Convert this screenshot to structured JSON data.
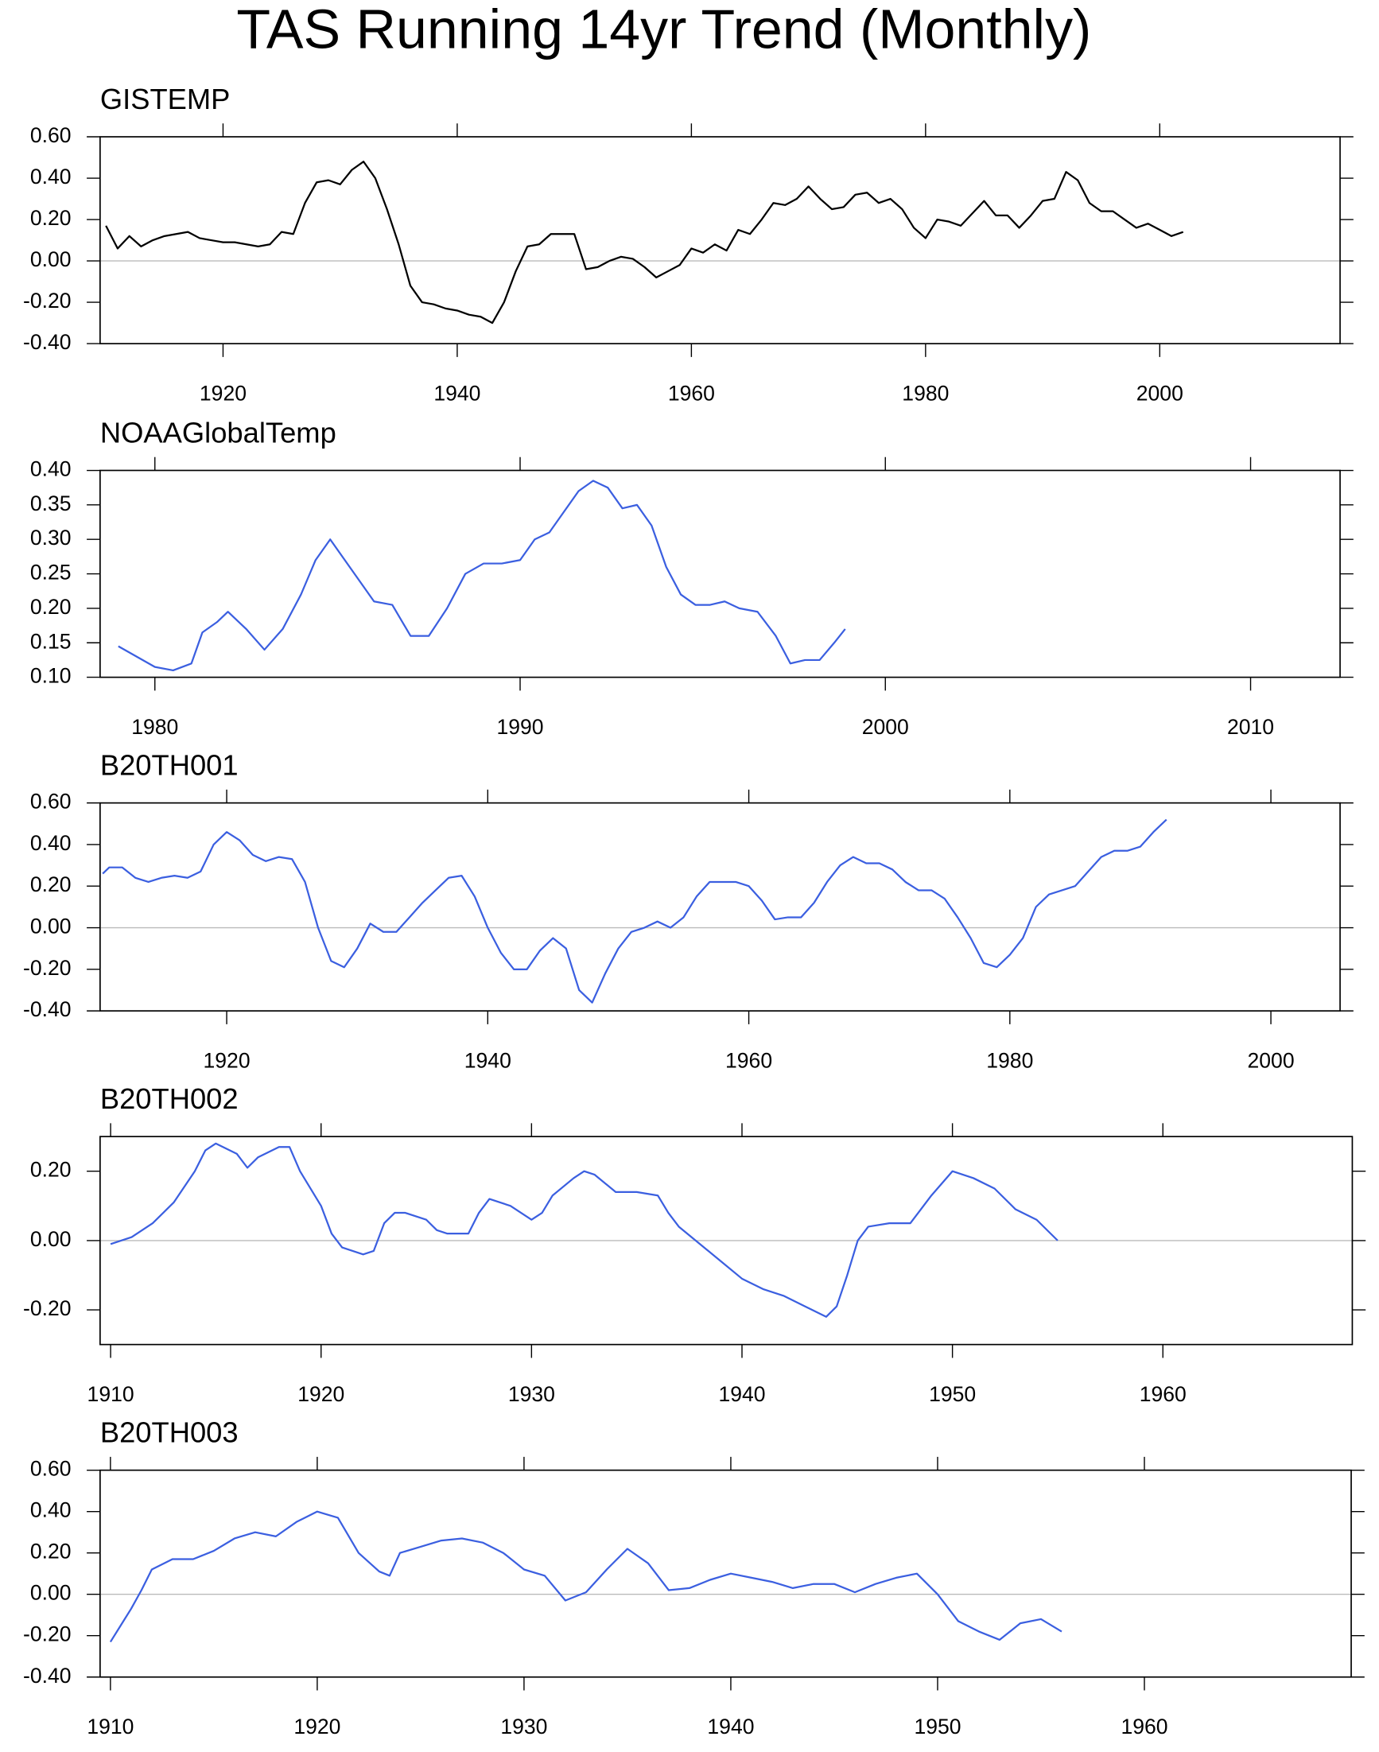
{
  "title": "TAS Running 14yr Trend (Monthly)",
  "chart_data": [
    {
      "type": "line",
      "title": "GISTEMP",
      "color": "#000000",
      "xlim": [
        1909.5,
        2015.4
      ],
      "ylim": [
        -0.4,
        0.6
      ],
      "xticks": [
        1920,
        1940,
        1960,
        1980,
        2000
      ],
      "yticks": [
        {
          "value": -0.4,
          "label": "-0.40"
        },
        {
          "value": -0.2,
          "label": "-0.20"
        },
        {
          "value": 0,
          "label": "0.00"
        },
        {
          "value": 0.2,
          "label": "0.20"
        },
        {
          "value": 0.4,
          "label": "0.40"
        },
        {
          "value": 0.6,
          "label": "0.60"
        }
      ],
      "x": [
        1910,
        1911,
        1912,
        1913,
        1914,
        1915,
        1916,
        1917,
        1918,
        1919,
        1920,
        1921,
        1922,
        1923,
        1924,
        1925,
        1926,
        1927,
        1928,
        1929,
        1930,
        1931,
        1932,
        1933,
        1934,
        1935,
        1936,
        1937,
        1938,
        1939,
        1940,
        1941,
        1942,
        1943,
        1944,
        1945,
        1946,
        1947,
        1948,
        1949,
        1950,
        1951,
        1952,
        1953,
        1954,
        1955,
        1956,
        1957,
        1958,
        1959,
        1960,
        1961,
        1962,
        1963,
        1964,
        1965,
        1966,
        1967,
        1968,
        1969,
        1970,
        1971,
        1972,
        1973,
        1974,
        1975,
        1976,
        1977,
        1978,
        1979,
        1980,
        1981,
        1982,
        1983,
        1984,
        1985,
        1986,
        1987,
        1988,
        1989,
        1990,
        1991,
        1992,
        1993,
        1994,
        1995,
        1996,
        1997,
        1998,
        1999,
        2000,
        2001,
        2002
      ],
      "values": [
        0.17,
        0.06,
        0.12,
        0.07,
        0.1,
        0.12,
        0.13,
        0.14,
        0.11,
        0.1,
        0.09,
        0.09,
        0.08,
        0.07,
        0.08,
        0.14,
        0.13,
        0.28,
        0.38,
        0.39,
        0.37,
        0.44,
        0.48,
        0.4,
        0.25,
        0.08,
        -0.12,
        -0.2,
        -0.21,
        -0.23,
        -0.24,
        -0.26,
        -0.27,
        -0.3,
        -0.2,
        -0.05,
        0.07,
        0.08,
        0.13,
        0.13,
        0.13,
        -0.04,
        -0.03,
        0.0,
        0.02,
        0.01,
        -0.03,
        -0.08,
        -0.05,
        -0.02,
        0.06,
        0.04,
        0.08,
        0.05,
        0.15,
        0.13,
        0.2,
        0.28,
        0.27,
        0.3,
        0.36,
        0.3,
        0.25,
        0.26,
        0.32,
        0.33,
        0.28,
        0.3,
        0.25,
        0.16,
        0.11,
        0.2,
        0.19,
        0.17,
        0.23,
        0.29,
        0.22,
        0.22,
        0.16,
        0.22,
        0.29,
        0.3,
        0.43,
        0.39,
        0.28,
        0.24,
        0.24,
        0.2,
        0.16,
        0.18,
        0.15,
        0.12,
        0.14
      ]
    },
    {
      "type": "line",
      "title": "NOAAGlobalTemp",
      "color": "#3b5fe0",
      "xlim": [
        1978.5,
        2012.45
      ],
      "ylim": [
        0.1,
        0.4
      ],
      "xticks": [
        1980,
        1990,
        2000,
        2010
      ],
      "yticks": [
        {
          "value": 0.1,
          "label": "0.10"
        },
        {
          "value": 0.15,
          "label": "0.15"
        },
        {
          "value": 0.2,
          "label": "0.20"
        },
        {
          "value": 0.25,
          "label": "0.25"
        },
        {
          "value": 0.3,
          "label": "0.30"
        },
        {
          "value": 0.35,
          "label": "0.35"
        },
        {
          "value": 0.4,
          "label": "0.40"
        }
      ],
      "x": [
        1979.0,
        1979.5,
        1980.0,
        1980.5,
        1981.0,
        1981.3,
        1981.7,
        1982.0,
        1982.5,
        1983.0,
        1983.5,
        1984.0,
        1984.4,
        1984.8,
        1985.2,
        1985.6,
        1986.0,
        1986.5,
        1987.0,
        1987.5,
        1988.0,
        1988.5,
        1989.0,
        1989.5,
        1990.0,
        1990.4,
        1990.8,
        1991.2,
        1991.6,
        1992.0,
        1992.4,
        1992.8,
        1993.2,
        1993.6,
        1994.0,
        1994.4,
        1994.8,
        1995.2,
        1995.6,
        1996.0,
        1996.5,
        1997.0,
        1997.4,
        1997.8,
        1998.2,
        1998.6,
        1998.9
      ],
      "values": [
        0.145,
        0.13,
        0.115,
        0.11,
        0.12,
        0.165,
        0.18,
        0.195,
        0.17,
        0.14,
        0.17,
        0.22,
        0.27,
        0.3,
        0.27,
        0.24,
        0.21,
        0.205,
        0.16,
        0.16,
        0.2,
        0.25,
        0.265,
        0.265,
        0.27,
        0.3,
        0.31,
        0.34,
        0.37,
        0.385,
        0.375,
        0.345,
        0.35,
        0.32,
        0.26,
        0.22,
        0.205,
        0.205,
        0.21,
        0.2,
        0.195,
        0.16,
        0.12,
        0.125,
        0.125,
        0.15,
        0.17
      ]
    },
    {
      "type": "line",
      "title": "B20TH001",
      "color": "#3b5fe0",
      "xlim": [
        1910.3,
        2005.3
      ],
      "ylim": [
        -0.4,
        0.6
      ],
      "xticks": [
        1920,
        1940,
        1960,
        1980,
        2000
      ],
      "yticks": [
        {
          "value": -0.4,
          "label": "-0.40"
        },
        {
          "value": -0.2,
          "label": "-0.20"
        },
        {
          "value": 0,
          "label": "0.00"
        },
        {
          "value": 0.2,
          "label": "0.20"
        },
        {
          "value": 0.4,
          "label": "0.40"
        },
        {
          "value": 0.6,
          "label": "0.60"
        }
      ],
      "x": [
        1910.5,
        1911,
        1912,
        1913,
        1914,
        1915,
        1916,
        1917,
        1918,
        1919,
        1920,
        1921,
        1922,
        1923,
        1924,
        1925,
        1926,
        1927,
        1928,
        1929,
        1930,
        1931,
        1932,
        1933,
        1934,
        1935,
        1936,
        1937,
        1938,
        1939,
        1940,
        1941,
        1942,
        1943,
        1944,
        1945,
        1946,
        1947,
        1948,
        1949,
        1950,
        1951,
        1952,
        1953,
        1954,
        1955,
        1956,
        1957,
        1958,
        1959,
        1960,
        1961,
        1962,
        1963,
        1964,
        1965,
        1966,
        1967,
        1968,
        1969,
        1970,
        1971,
        1972,
        1973,
        1974,
        1975,
        1976,
        1977,
        1978,
        1979,
        1980,
        1981,
        1982,
        1983,
        1984,
        1985,
        1986,
        1987,
        1988,
        1989,
        1990,
        1991,
        1992
      ],
      "values": [
        0.26,
        0.29,
        0.29,
        0.24,
        0.22,
        0.24,
        0.25,
        0.24,
        0.27,
        0.4,
        0.46,
        0.42,
        0.35,
        0.32,
        0.34,
        0.33,
        0.22,
        0.0,
        -0.16,
        -0.19,
        -0.1,
        0.02,
        -0.02,
        -0.02,
        0.05,
        0.12,
        0.18,
        0.24,
        0.25,
        0.15,
        0.0,
        -0.12,
        -0.2,
        -0.2,
        -0.11,
        -0.05,
        -0.1,
        -0.3,
        -0.36,
        -0.22,
        -0.1,
        -0.02,
        0.0,
        0.03,
        0.0,
        0.05,
        0.15,
        0.22,
        0.22,
        0.22,
        0.2,
        0.13,
        0.04,
        0.05,
        0.05,
        0.12,
        0.22,
        0.3,
        0.34,
        0.31,
        0.31,
        0.28,
        0.22,
        0.18,
        0.18,
        0.14,
        0.05,
        -0.05,
        -0.17,
        -0.19,
        -0.13,
        -0.05,
        0.1,
        0.16,
        0.18,
        0.2,
        0.27,
        0.34,
        0.37,
        0.37,
        0.39,
        0.46,
        0.52
      ]
    },
    {
      "type": "line",
      "title": "B20TH002",
      "color": "#3b5fe0",
      "xlim": [
        1909.5,
        1969.0
      ],
      "ylim": [
        -0.3,
        0.3
      ],
      "xticks": [
        1910,
        1920,
        1930,
        1940,
        1950,
        1960
      ],
      "yticks": [
        {
          "value": -0.2,
          "label": "-0.20"
        },
        {
          "value": 0,
          "label": "0.00"
        },
        {
          "value": 0.2,
          "label": "0.20"
        }
      ],
      "x": [
        1910,
        1911,
        1912,
        1913,
        1914,
        1914.5,
        1915,
        1916,
        1916.5,
        1917,
        1918,
        1918.5,
        1919,
        1920,
        1920.5,
        1921,
        1922,
        1922.5,
        1923,
        1923.5,
        1924,
        1925,
        1925.5,
        1926,
        1927,
        1927.5,
        1928,
        1929,
        1930,
        1930.5,
        1931,
        1932,
        1932.5,
        1933,
        1934,
        1935,
        1936,
        1936.5,
        1937,
        1938,
        1939,
        1940,
        1941,
        1942,
        1943,
        1944,
        1944.5,
        1945,
        1945.5,
        1946,
        1947,
        1948,
        1949,
        1950,
        1951,
        1952,
        1953,
        1954,
        1955
      ],
      "values": [
        -0.01,
        0.01,
        0.05,
        0.11,
        0.2,
        0.26,
        0.28,
        0.25,
        0.21,
        0.24,
        0.27,
        0.27,
        0.2,
        0.1,
        0.02,
        -0.02,
        -0.04,
        -0.03,
        0.05,
        0.08,
        0.08,
        0.06,
        0.03,
        0.02,
        0.02,
        0.08,
        0.12,
        0.1,
        0.06,
        0.08,
        0.13,
        0.18,
        0.2,
        0.19,
        0.14,
        0.14,
        0.13,
        0.08,
        0.04,
        -0.01,
        -0.06,
        -0.11,
        -0.14,
        -0.16,
        -0.19,
        -0.22,
        -0.19,
        -0.1,
        0.0,
        0.04,
        0.05,
        0.05,
        0.13,
        0.2,
        0.18,
        0.15,
        0.09,
        0.06,
        0.0
      ]
    },
    {
      "type": "line",
      "title": "B20TH003",
      "color": "#3b5fe0",
      "xlim": [
        1909.5,
        1970.0
      ],
      "ylim": [
        -0.4,
        0.6
      ],
      "xticks": [
        1910,
        1920,
        1930,
        1940,
        1950,
        1960
      ],
      "yticks": [
        {
          "value": -0.4,
          "label": "-0.40"
        },
        {
          "value": -0.2,
          "label": "-0.20"
        },
        {
          "value": 0,
          "label": "0.00"
        },
        {
          "value": 0.2,
          "label": "0.20"
        },
        {
          "value": 0.4,
          "label": "0.40"
        },
        {
          "value": 0.6,
          "label": "0.60"
        }
      ],
      "x": [
        1910,
        1910.5,
        1911,
        1911.5,
        1912,
        1913,
        1914,
        1915,
        1916,
        1917,
        1918,
        1919,
        1920,
        1921,
        1922,
        1923,
        1923.5,
        1924,
        1925,
        1926,
        1927,
        1928,
        1929,
        1930,
        1931,
        1932,
        1933,
        1934,
        1935,
        1936,
        1937,
        1938,
        1939,
        1940,
        1941,
        1942,
        1943,
        1944,
        1945,
        1946,
        1947,
        1948,
        1949,
        1950,
        1951,
        1952,
        1953,
        1954,
        1955,
        1956
      ],
      "values": [
        -0.23,
        -0.15,
        -0.07,
        0.02,
        0.12,
        0.17,
        0.17,
        0.21,
        0.27,
        0.3,
        0.28,
        0.35,
        0.4,
        0.37,
        0.2,
        0.11,
        0.09,
        0.2,
        0.23,
        0.26,
        0.27,
        0.25,
        0.2,
        0.12,
        0.09,
        -0.03,
        0.01,
        0.12,
        0.22,
        0.15,
        0.02,
        0.03,
        0.07,
        0.1,
        0.08,
        0.06,
        0.03,
        0.05,
        0.05,
        0.01,
        0.05,
        0.08,
        0.1,
        0.0,
        -0.13,
        -0.18,
        -0.22,
        -0.14,
        -0.12,
        -0.18
      ]
    }
  ]
}
